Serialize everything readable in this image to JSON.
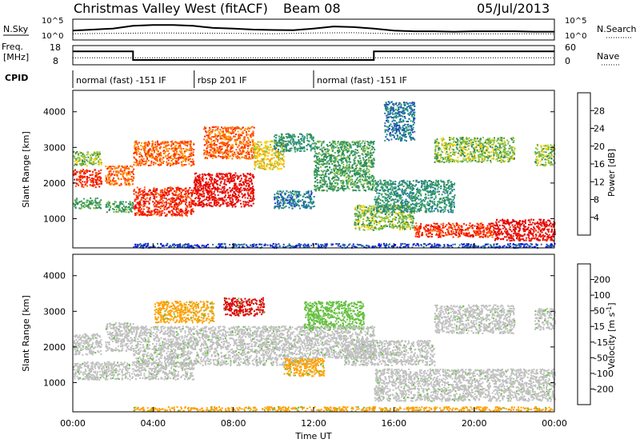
{
  "header": {
    "title": "Christmas Valley West (fitACF)",
    "beam": "Beam 08",
    "date": "05/Jul/2013"
  },
  "chart_data": [
    {
      "type": "line",
      "id": "noise-panel",
      "left_label": "N.Sky",
      "right_label": "N.Search",
      "left_ticks": [
        "10^5",
        "10^0"
      ],
      "right_ticks": [
        "10^5",
        "10^0"
      ],
      "x_range_hours": [
        0,
        24
      ],
      "series": [
        {
          "style": "solid",
          "x": [
            0,
            1,
            2,
            3,
            4,
            5,
            6,
            7,
            8,
            9,
            10,
            11,
            12,
            13,
            14,
            15,
            16,
            17,
            18,
            19,
            20,
            21,
            22,
            23,
            24
          ],
          "values": [
            0.45,
            0.5,
            0.55,
            0.68,
            0.72,
            0.72,
            0.68,
            0.58,
            0.55,
            0.5,
            0.48,
            0.47,
            0.55,
            0.65,
            0.62,
            0.55,
            0.45,
            0.42,
            0.42,
            0.4,
            0.42,
            0.42,
            0.42,
            0.4,
            0.4
          ]
        },
        {
          "style": "dotted",
          "x": [
            0,
            2,
            4,
            6,
            8,
            10,
            12,
            14,
            16,
            18,
            20,
            22,
            24
          ],
          "values": [
            0.3,
            0.32,
            0.34,
            0.33,
            0.32,
            0.3,
            0.34,
            0.35,
            0.3,
            0.3,
            0.3,
            0.3,
            0.3
          ]
        }
      ]
    },
    {
      "type": "line",
      "id": "freq-panel",
      "left_label": "Freq. [MHz]",
      "right_label": "Nave",
      "left_ticks": [
        "18",
        "8"
      ],
      "right_ticks": [
        "60",
        "0"
      ],
      "x_range_hours": [
        0,
        24
      ],
      "series": [
        {
          "name": "Freq",
          "style": "solid",
          "x": [
            0,
            3.0,
            3.0,
            15.0,
            15.0,
            24
          ],
          "values": [
            15,
            15,
            10.5,
            10.5,
            15,
            15
          ]
        },
        {
          "name": "Nave",
          "style": "dotted",
          "x": [
            0,
            24
          ],
          "values": [
            22,
            22
          ]
        }
      ]
    },
    {
      "type": "table",
      "id": "cpid-row",
      "label": "CPID",
      "segments": [
        {
          "start": 0,
          "end": 6.05,
          "text": "normal (fast) -151 IF"
        },
        {
          "start": 6.05,
          "end": 12.0,
          "text": "rbsp 201 IF"
        },
        {
          "start": 12.0,
          "end": 24,
          "text": "normal (fast) -151 IF"
        }
      ]
    },
    {
      "type": "heatmap",
      "id": "power-panel",
      "ylabel": "Slant Range [km]",
      "ylim": [
        180,
        4600
      ],
      "yticks": [
        1000,
        2000,
        3000,
        4000
      ],
      "colorbar": {
        "label": "Power [dB]",
        "ticks": [
          "28",
          "24",
          "20",
          "16",
          "12",
          "8",
          "4"
        ],
        "colors": [
          "#0000ff",
          "#2040c0",
          "#1e7a9a",
          "#3aa070",
          "#2e8b57",
          "#88c040",
          "#ffd000",
          "#ffa000",
          "#ff6000",
          "#ff2000",
          "#e00000"
        ]
      },
      "regions": [
        {
          "t": [
            0.0,
            1.4
          ],
          "r": [
            1900,
            2400
          ],
          "level": 9
        },
        {
          "t": [
            0.0,
            1.4
          ],
          "r": [
            2500,
            2900
          ],
          "level": 5
        },
        {
          "t": [
            0.0,
            1.4
          ],
          "r": [
            1300,
            1600
          ],
          "level": 4
        },
        {
          "t": [
            1.6,
            3.0
          ],
          "r": [
            1950,
            2500
          ],
          "level": 8
        },
        {
          "t": [
            1.6,
            3.0
          ],
          "r": [
            1200,
            1500
          ],
          "level": 4
        },
        {
          "t": [
            3.0,
            6.0
          ],
          "r": [
            1100,
            1900
          ],
          "level": 9
        },
        {
          "t": [
            3.0,
            6.0
          ],
          "r": [
            2500,
            3200
          ],
          "level": 8
        },
        {
          "t": [
            6.0,
            9.0
          ],
          "r": [
            1350,
            2300
          ],
          "level": 10
        },
        {
          "t": [
            6.5,
            9.0
          ],
          "r": [
            2700,
            3600
          ],
          "level": 8
        },
        {
          "t": [
            9.0,
            10.5
          ],
          "r": [
            2400,
            3200
          ],
          "level": 6
        },
        {
          "t": [
            10.0,
            12.0
          ],
          "r": [
            1300,
            1800
          ],
          "level": 2
        },
        {
          "t": [
            10.0,
            12.0
          ],
          "r": [
            2900,
            3400
          ],
          "level": 3
        },
        {
          "t": [
            12.0,
            15.0
          ],
          "r": [
            1800,
            3200
          ],
          "level": 4
        },
        {
          "t": [
            14.0,
            17.0
          ],
          "r": [
            700,
            1400
          ],
          "level": 5
        },
        {
          "t": [
            15.0,
            19.0
          ],
          "r": [
            1200,
            2100
          ],
          "level": 3
        },
        {
          "t": [
            17.0,
            21.0
          ],
          "r": [
            500,
            900
          ],
          "level": 9
        },
        {
          "t": [
            21.0,
            24.0
          ],
          "r": [
            400,
            1000
          ],
          "level": 10
        },
        {
          "t": [
            18.0,
            22.0
          ],
          "r": [
            2600,
            3300
          ],
          "level": 5
        },
        {
          "t": [
            23.0,
            24.0
          ],
          "r": [
            2500,
            3100
          ],
          "level": 5
        },
        {
          "t": [
            15.5,
            17.0
          ],
          "r": [
            3200,
            4300
          ],
          "level": 2
        },
        {
          "t": [
            3.0,
            24.0
          ],
          "r": [
            200,
            320
          ],
          "level": 1
        }
      ]
    },
    {
      "type": "heatmap",
      "id": "velocity-panel",
      "ylabel": "Slant Range [km]",
      "ylim": [
        180,
        4600
      ],
      "yticks": [
        1000,
        2000,
        3000,
        4000
      ],
      "xlabel": "Time UT",
      "xticks": [
        "00:00",
        "04:00",
        "08:00",
        "12:00",
        "16:00",
        "20:00",
        "00:00"
      ],
      "xtick_hours": [
        0,
        4,
        8,
        12,
        16,
        20,
        24
      ],
      "colorbar": {
        "label": "Velocity [m s^-1]",
        "ticks": [
          "200",
          "100",
          "50",
          "15",
          "-15",
          "-50",
          "-100",
          "-200"
        ],
        "colors": [
          "#2040c0",
          "#1e7a9a",
          "#2e8b57",
          "#66c040",
          "#c0c0c0",
          "#c0c0c0",
          "#ffa000",
          "#ff7000",
          "#ff2000",
          "#e00000"
        ]
      },
      "regions": [
        {
          "t": [
            0.0,
            1.4
          ],
          "r": [
            1800,
            2400
          ],
          "value": 0
        },
        {
          "t": [
            1.6,
            3.0
          ],
          "r": [
            1900,
            2700
          ],
          "value": 0
        },
        {
          "t": [
            0.0,
            6.0
          ],
          "r": [
            1100,
            1600
          ],
          "value": 0
        },
        {
          "t": [
            3.0,
            12.0
          ],
          "r": [
            1500,
            2600
          ],
          "value": 0
        },
        {
          "t": [
            4.0,
            7.0
          ],
          "r": [
            2700,
            3300
          ],
          "value": -60
        },
        {
          "t": [
            7.5,
            9.5
          ],
          "r": [
            2900,
            3400
          ],
          "value": -220
        },
        {
          "t": [
            10.5,
            12.5
          ],
          "r": [
            1200,
            1700
          ],
          "value": -60
        },
        {
          "t": [
            11.5,
            14.5
          ],
          "r": [
            2500,
            3300
          ],
          "value": 40
        },
        {
          "t": [
            12.0,
            15.0
          ],
          "r": [
            1700,
            2600
          ],
          "value": 0
        },
        {
          "t": [
            13.5,
            18.0
          ],
          "r": [
            1500,
            2200
          ],
          "value": 0
        },
        {
          "t": [
            15.0,
            24.0
          ],
          "r": [
            500,
            1400
          ],
          "value": 0
        },
        {
          "t": [
            18.0,
            22.0
          ],
          "r": [
            2400,
            3200
          ],
          "value": 0
        },
        {
          "t": [
            23.0,
            24.0
          ],
          "r": [
            2500,
            3100
          ],
          "value": 0
        },
        {
          "t": [
            3.0,
            24.0
          ],
          "r": [
            220,
            340
          ],
          "value": -60
        }
      ]
    }
  ]
}
